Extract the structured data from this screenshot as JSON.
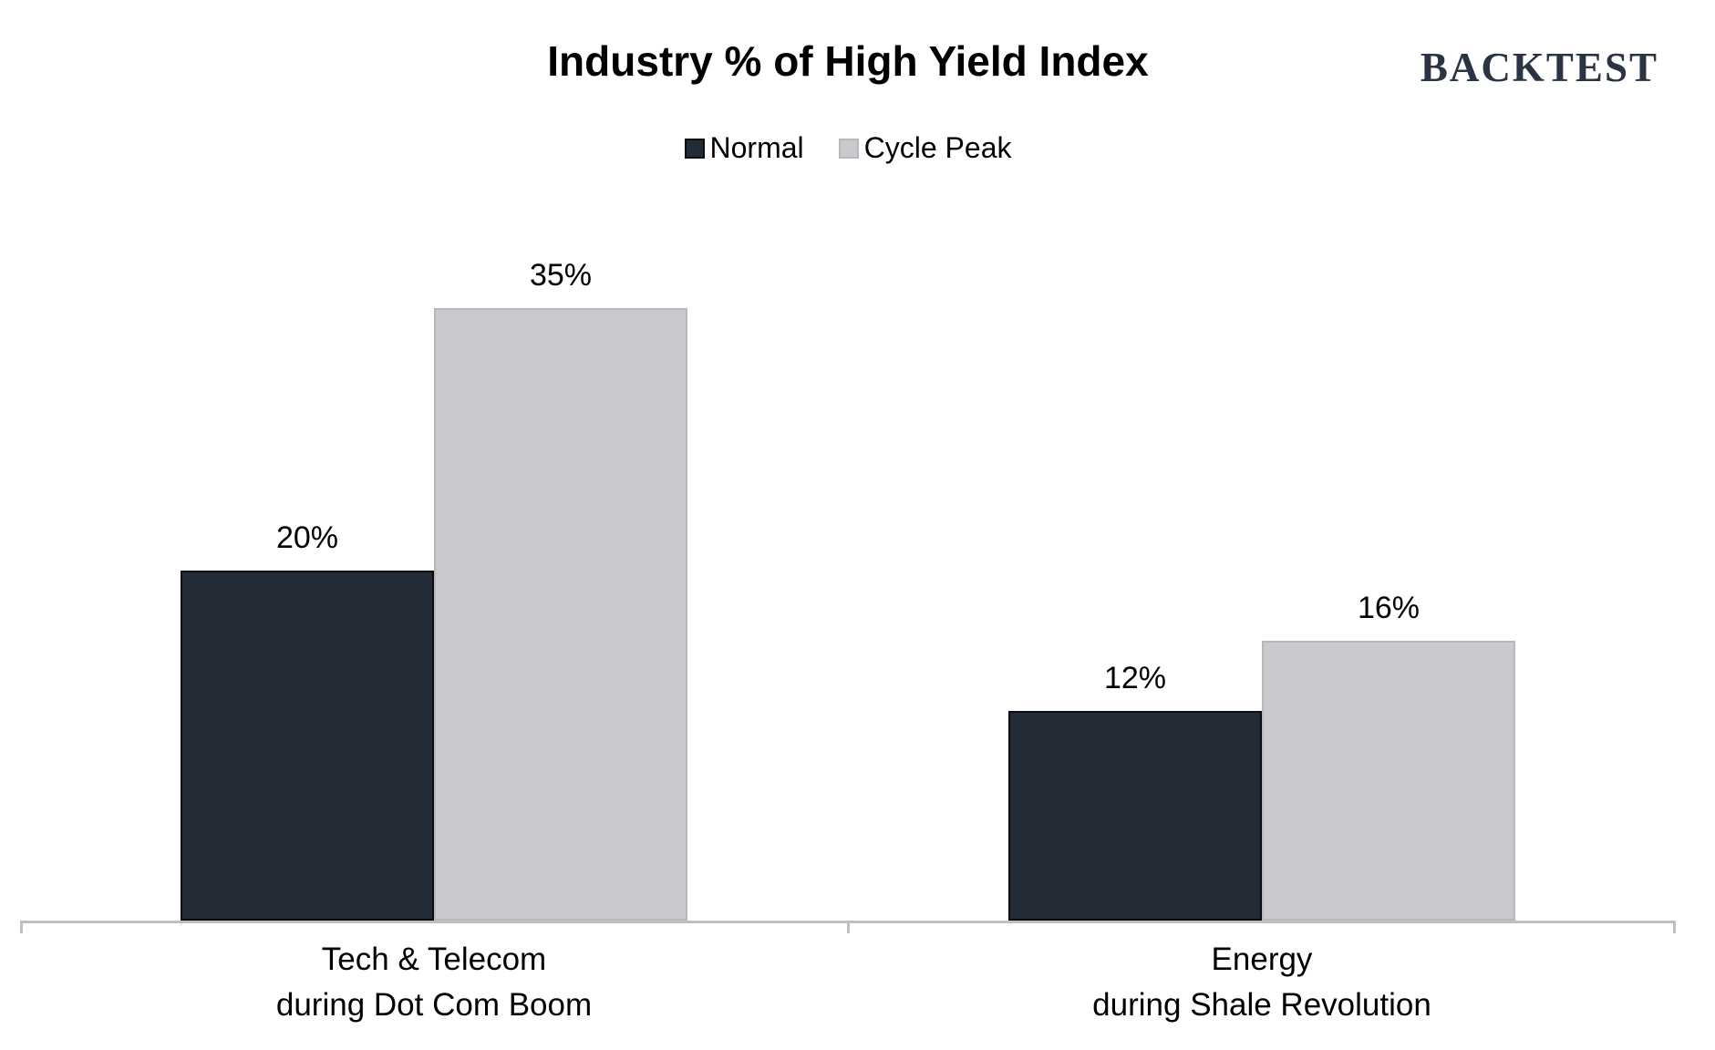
{
  "header": {
    "logo_text": "BACKTEST"
  },
  "chart_data": {
    "type": "bar",
    "title": "Industry % of High Yield Index",
    "categories": [
      [
        "Tech & Telecom",
        "during Dot Com Boom"
      ],
      [
        "Energy",
        "during Shale Revolution"
      ]
    ],
    "series": [
      {
        "name": "Normal",
        "values": [
          20,
          12
        ],
        "labels": [
          "20%",
          "12%"
        ],
        "fill": "#232B36",
        "border": "#0A0E14"
      },
      {
        "name": "Cycle Peak",
        "values": [
          35,
          16
        ],
        "labels": [
          "35%",
          "16%"
        ],
        "fill": "#C9CACE",
        "border": "#B7B8BB"
      }
    ],
    "unit": "%",
    "ylim": [
      0,
      43
    ],
    "grid": false,
    "legend_position": "top-center",
    "axis_color": "#BFBFBF",
    "value_label_color": "#000000"
  },
  "colors": {
    "background": "#FFFFFF",
    "title": "#000000",
    "logo": "#2B3442"
  }
}
